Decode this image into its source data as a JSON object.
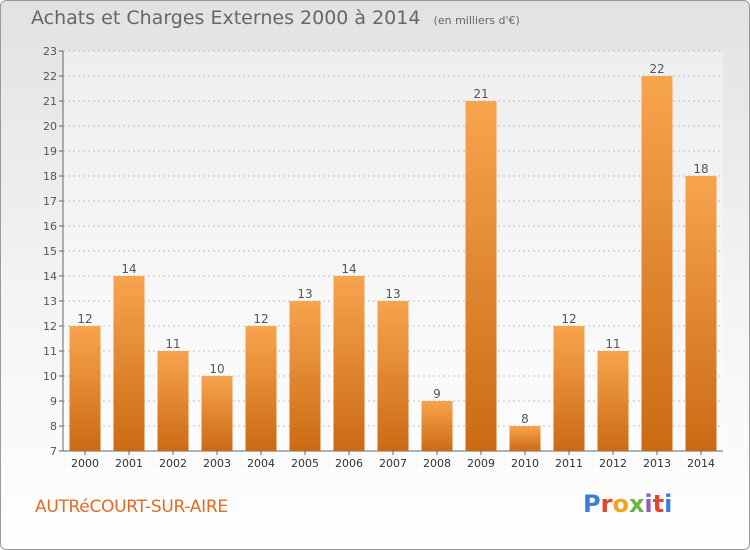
{
  "header": {
    "title": "Achats et Charges Externes 2000 à 2014",
    "unit": "(en milliers d'€)"
  },
  "footer": {
    "town": "AUTRéCOURT-SUR-AIRE",
    "logo": "Proxiti",
    "logo_colors": [
      "#3a7fd4",
      "#e2452b",
      "#f0a31b",
      "#6db33f",
      "#9b59b6",
      "#e2452b",
      "#3a7fd4"
    ]
  },
  "colors": {
    "bar_light": "#f7a44e",
    "bar_dark": "#cc6a14",
    "grid": "#bfbfbf",
    "text": "#555555"
  },
  "chart_data": {
    "type": "bar",
    "title": "Achats et Charges Externes 2000 à 2014",
    "subtitle": "(en milliers d'€)",
    "categories": [
      "2000",
      "2001",
      "2002",
      "2003",
      "2004",
      "2005",
      "2006",
      "2007",
      "2008",
      "2009",
      "2010",
      "2011",
      "2012",
      "2013",
      "2014"
    ],
    "values": [
      12,
      14,
      11,
      10,
      12,
      13,
      14,
      13,
      9,
      21,
      8,
      12,
      11,
      22,
      18
    ],
    "ylim": [
      7,
      23
    ],
    "yticks": [
      7,
      8,
      9,
      10,
      11,
      12,
      13,
      14,
      15,
      16,
      17,
      18,
      19,
      20,
      21,
      22,
      23
    ],
    "grid": true,
    "data_labels": true
  }
}
